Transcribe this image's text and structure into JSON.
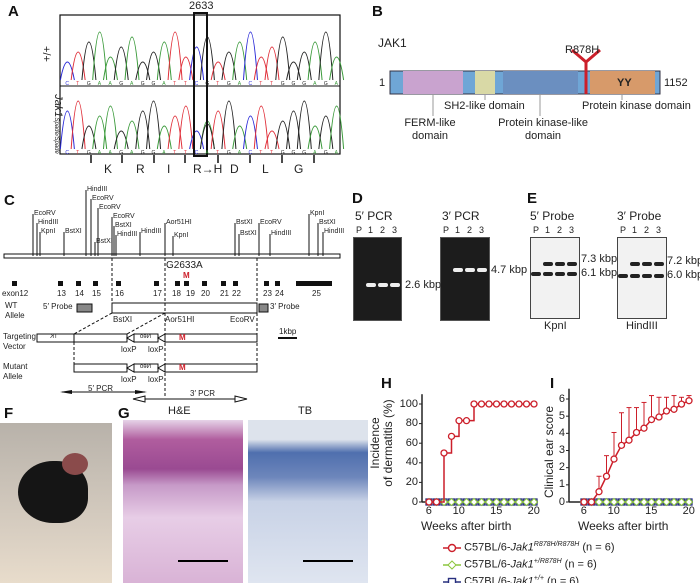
{
  "panels": {
    "a": "A",
    "b": "B",
    "c": "C",
    "d": "D",
    "e": "E",
    "f": "F",
    "g": "G",
    "h": "H",
    "i": "I"
  },
  "panel_a": {
    "position_label": "2633",
    "row_labels": [
      "+/+",
      "Jak1",
      "Spade/Spade"
    ],
    "seq_wt": "CTGAAGAGGATTCGTGACTTGGGAGA",
    "seq_mut": "CTGAAGAGGATTCATGACTTGGGAGA",
    "amino_acids": [
      "K",
      "R",
      "I",
      "R→H",
      "D",
      "L",
      "G"
    ],
    "base_colors": {
      "A": "#3a9a3a",
      "C": "#2a2ad8",
      "G": "#222222",
      "T": "#e0303a"
    }
  },
  "panel_b": {
    "protein": "JAK1",
    "start": "1",
    "end": "1152",
    "mutation": "R878H",
    "kinase_label": "YY",
    "domains": [
      "FERM-like domain",
      "SH2-like domain",
      "Protein kinase-like domain",
      "Protein kinase domain"
    ],
    "colors": {
      "bar": "#6fa6d6",
      "ferm": "#c9a3cf",
      "sh2": "#d9d9a6",
      "pkl": "#6b8fc0",
      "pk": "#d79a6a",
      "mutation": "#cc1f2a"
    }
  },
  "panel_c": {
    "sites": [
      "EcoRV",
      "HindIII",
      "KpnI",
      "BstXI",
      "HindIII",
      "EcoRV",
      "EcoRV",
      "BstXI",
      "EcoRV",
      "BstXI",
      "HindIII",
      "HindIII",
      "Aor51HI",
      "KpnI",
      "BstXI",
      "BstXI",
      "EcoRV",
      "HindIII",
      "KpnI",
      "BstXI",
      "HindIII"
    ],
    "mutation": "G2633A",
    "mark": "M",
    "exons": [
      "exon12",
      "13",
      "14",
      "15",
      "16",
      "17",
      "18",
      "19",
      "20",
      "21",
      "22",
      "23",
      "24",
      "25"
    ],
    "wt_allele": "WT\nAllele",
    "probe5": "5′ Probe",
    "probe3": "3′ Probe",
    "wt_sites": [
      "BstXI",
      "Aor51HI",
      "EcoRV"
    ],
    "targeting": "Targeting\nVector",
    "mutant": "Mutant\nAllele",
    "tk": "TK",
    "neo": "Neo",
    "loxp": "loxP",
    "scale": "1kbp",
    "pcr5": "5′ PCR",
    "pcr3": "3′ PCR"
  },
  "panel_d": {
    "gels": [
      {
        "title": "5′ PCR",
        "size": "2.6 kbp"
      },
      {
        "title": "3′ PCR",
        "size": "4.7 kbp"
      }
    ],
    "lanes": [
      "P",
      "1",
      "2",
      "3"
    ]
  },
  "panel_e": {
    "blots": [
      {
        "title": "5′ Probe",
        "upper": "7.3 kbp",
        "lower": "6.1 kbp",
        "enzyme": "KpnI"
      },
      {
        "title": "3′ Probe",
        "upper": "7.2 kbp",
        "lower": "6.0 kbp",
        "enzyme": "HindIII"
      }
    ],
    "lanes": [
      "P",
      "1",
      "2",
      "3"
    ]
  },
  "panel_g": {
    "stains": [
      "H&E",
      "TB"
    ]
  },
  "chart_data": [
    {
      "type": "line",
      "panel": "H",
      "xlabel": "Weeks after birth",
      "ylabel": "Incidence\nof dermatitis (%)",
      "xlim": [
        5,
        21
      ],
      "ylim": [
        0,
        110
      ],
      "xticks": [
        6,
        10,
        15,
        20
      ],
      "yticks": [
        0,
        20,
        40,
        60,
        80,
        100
      ],
      "x": [
        6,
        7,
        8,
        9,
        10,
        11,
        12,
        13,
        14,
        15,
        16,
        17,
        18,
        19,
        20
      ],
      "series": [
        {
          "name": "C57BL/6-Jak1 R878H/R878H (n = 6)",
          "color": "#cc1f2a",
          "marker": "circle",
          "step": true,
          "values": [
            0,
            0,
            50,
            67,
            83,
            83,
            100,
            100,
            100,
            100,
            100,
            100,
            100,
            100,
            100
          ]
        },
        {
          "name": "C57BL/6-Jak1 +/R878H (n = 6)",
          "color": "#8cc63e",
          "marker": "diamond",
          "values": [
            0,
            0,
            0,
            0,
            0,
            0,
            0,
            0,
            0,
            0,
            0,
            0,
            0,
            0,
            0
          ]
        },
        {
          "name": "C57BL/6-Jak1 +/+ (n = 6)",
          "color": "#28307f",
          "marker": "square",
          "values": [
            0,
            0,
            0,
            0,
            0,
            0,
            0,
            0,
            0,
            0,
            0,
            0,
            0,
            0,
            0
          ]
        }
      ]
    },
    {
      "type": "line",
      "panel": "I",
      "xlabel": "Weeks after birth",
      "ylabel": "Clinical ear score",
      "xlim": [
        5,
        21
      ],
      "ylim": [
        0,
        6.6
      ],
      "xticks": [
        6,
        10,
        15,
        20
      ],
      "yticks": [
        0,
        1,
        2,
        3,
        4,
        5,
        6
      ],
      "x": [
        6,
        7,
        8,
        9,
        10,
        11,
        12,
        13,
        14,
        15,
        16,
        17,
        18,
        19,
        20
      ],
      "series": [
        {
          "name": "C57BL/6-Jak1 R878H/R878H (n = 6)",
          "color": "#cc1f2a",
          "marker": "circle",
          "values": [
            0,
            0,
            0.6,
            1.5,
            2.5,
            3.3,
            3.6,
            4.05,
            4.3,
            4.8,
            4.95,
            5.3,
            5.4,
            5.7,
            5.9
          ],
          "error_upper": [
            0,
            0,
            1.5,
            2.7,
            4.05,
            5.2,
            5.5,
            5.5,
            5.8,
            6.2,
            6.1,
            6.1,
            6.2,
            6.1,
            6.2
          ]
        },
        {
          "name": "C57BL/6-Jak1 +/R878H (n = 6)",
          "color": "#8cc63e",
          "marker": "diamond",
          "values": [
            0,
            0,
            0,
            0,
            0,
            0,
            0,
            0,
            0,
            0,
            0,
            0,
            0,
            0,
            0
          ]
        },
        {
          "name": "C57BL/6-Jak1 +/+ (n = 6)",
          "color": "#28307f",
          "marker": "square",
          "values": [
            0,
            0,
            0,
            0,
            0,
            0,
            0,
            0,
            0,
            0,
            0,
            0,
            0,
            0,
            0
          ]
        }
      ]
    }
  ],
  "legend": [
    {
      "prefix": "C57BL/6-",
      "gene": "Jak1",
      "sup": "R878H/R878H",
      "n": " (n = 6)"
    },
    {
      "prefix": "C57BL/6-",
      "gene": "Jak1",
      "sup": "+/R878H",
      "n": " (n = 6)"
    },
    {
      "prefix": "C57BL/6-",
      "gene": "Jak1",
      "sup": "+/+",
      "n": " (n = 6)"
    }
  ]
}
